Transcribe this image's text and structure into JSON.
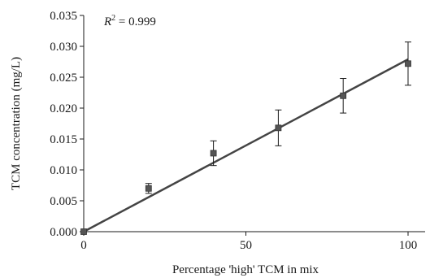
{
  "chart_data": {
    "type": "scatter",
    "title": "",
    "xlabel": "Percentage 'high' TCM in mix",
    "ylabel": "TCM concentration (mg/L)",
    "xlim": [
      0,
      110
    ],
    "ylim": [
      0,
      0.035
    ],
    "x_ticks": [
      0,
      50,
      100
    ],
    "y_ticks": [
      0.0,
      0.005,
      0.01,
      0.015,
      0.02,
      0.025,
      0.03,
      0.035
    ],
    "x_tick_labels": [
      "0",
      "50",
      "100"
    ],
    "y_tick_labels": [
      "0.000",
      "0.005",
      "0.010",
      "0.015",
      "0.020",
      "0.025",
      "0.030",
      "0.035"
    ],
    "grid": false,
    "legend": "none",
    "annotation": {
      "symbol": "R",
      "superscript": "2",
      "text": " = 0.999"
    },
    "series": [
      {
        "x": [
          0,
          20,
          40,
          60,
          80,
          100
        ],
        "y": [
          0.0,
          0.007,
          0.0127,
          0.0168,
          0.022,
          0.0272
        ],
        "error": [
          0.0,
          0.0008,
          0.002,
          0.0029,
          0.0028,
          0.0035
        ],
        "marker": "square",
        "color": "#555555"
      }
    ],
    "fit_line": {
      "x": [
        0,
        100
      ],
      "y": [
        0.0,
        0.0279
      ],
      "color": "#444444"
    }
  }
}
